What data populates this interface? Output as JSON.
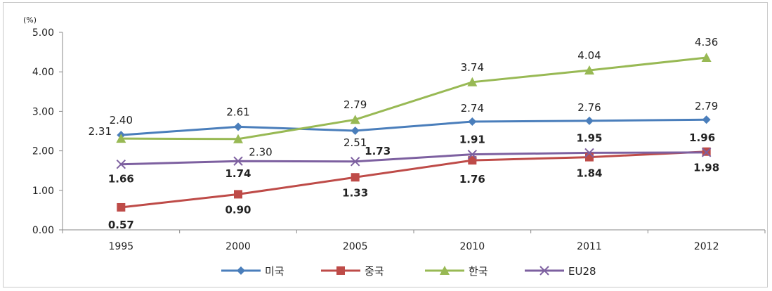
{
  "chart_data": {
    "type": "line",
    "unit_label": "(%)",
    "categories": [
      "1995",
      "2000",
      "2005",
      "2010",
      "2011",
      "2012"
    ],
    "ylim": [
      0,
      5
    ],
    "yticks": [
      "0.00",
      "1.00",
      "2.00",
      "3.00",
      "4.00",
      "5.00"
    ],
    "legend_position": "bottom",
    "grid": false,
    "series": [
      {
        "name": "미국",
        "color": "#4a7ebb",
        "marker": "diamond",
        "values": [
          2.4,
          2.61,
          2.51,
          2.74,
          2.76,
          2.79
        ],
        "labels": [
          "2.40",
          "2.61",
          "2.51",
          "2.74",
          "2.76",
          "2.79"
        ],
        "label_bold": false
      },
      {
        "name": "중국",
        "color": "#be4b48",
        "marker": "square",
        "values": [
          0.57,
          0.9,
          1.33,
          1.76,
          1.84,
          1.98
        ],
        "labels": [
          "0.57",
          "0.90",
          "1.33",
          "1.76",
          "1.84",
          "1.98"
        ],
        "label_bold": true
      },
      {
        "name": "한국",
        "color": "#98b954",
        "marker": "triangle",
        "values": [
          2.31,
          2.3,
          2.79,
          3.74,
          4.04,
          4.36
        ],
        "labels": [
          "2.31",
          "2.30",
          "2.79",
          "3.74",
          "4.04",
          "4.36"
        ],
        "label_bold": false
      },
      {
        "name": "EU28",
        "color": "#7d60a0",
        "marker": "x",
        "values": [
          1.66,
          1.74,
          1.73,
          1.91,
          1.95,
          1.96
        ],
        "labels": [
          "1.66",
          "1.74",
          "1.73",
          "1.91",
          "1.95",
          "1.96"
        ],
        "label_bold": true
      }
    ]
  }
}
